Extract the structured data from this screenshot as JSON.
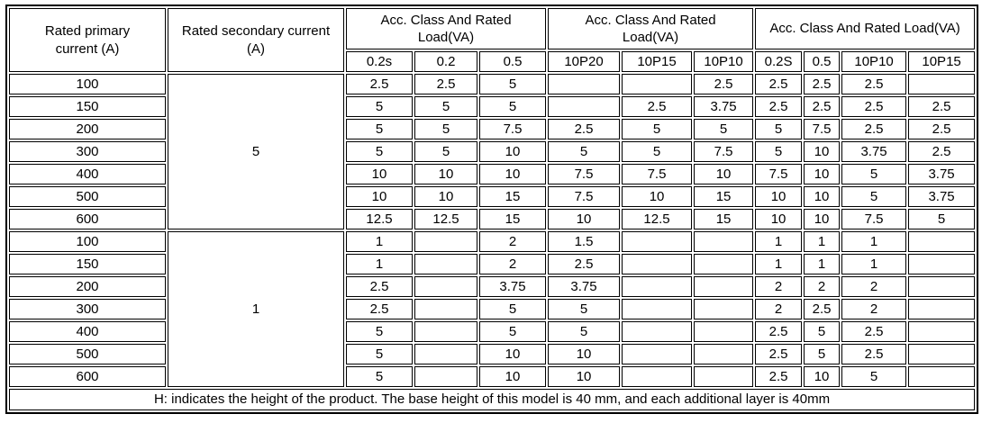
{
  "colors": {
    "border": "#000000",
    "text": "#000000",
    "background": "#ffffff"
  },
  "table": {
    "header": {
      "primary_label": "Rated primary current (A)",
      "secondary_label": "Rated secondary current (A)",
      "groups": [
        {
          "label": "Acc. Class And Rated Load(VA)",
          "columns": [
            "0.2s",
            "0.2",
            "0.5"
          ]
        },
        {
          "label": "Acc. Class And Rated Load(VA)",
          "columns": [
            "10P20",
            "10P15",
            "10P10"
          ]
        },
        {
          "label": "Acc. Class And Rated Load(VA)",
          "columns": [
            "0.2S",
            "0.5",
            "10P10",
            "10P15"
          ]
        }
      ]
    },
    "blocks": [
      {
        "secondary_current": "5",
        "rows": [
          {
            "primary_current": "100",
            "values": [
              "2.5",
              "2.5",
              "5",
              "",
              "",
              "2.5",
              "2.5",
              "2.5",
              "2.5",
              ""
            ]
          },
          {
            "primary_current": "150",
            "values": [
              "5",
              "5",
              "5",
              "",
              "2.5",
              "3.75",
              "2.5",
              "2.5",
              "2.5",
              "2.5"
            ]
          },
          {
            "primary_current": "200",
            "values": [
              "5",
              "5",
              "7.5",
              "2.5",
              "5",
              "5",
              "5",
              "7.5",
              "2.5",
              "2.5"
            ]
          },
          {
            "primary_current": "300",
            "values": [
              "5",
              "5",
              "10",
              "5",
              "5",
              "7.5",
              "5",
              "10",
              "3.75",
              "2.5"
            ]
          },
          {
            "primary_current": "400",
            "values": [
              "10",
              "10",
              "10",
              "7.5",
              "7.5",
              "10",
              "7.5",
              "10",
              "5",
              "3.75"
            ]
          },
          {
            "primary_current": "500",
            "values": [
              "10",
              "10",
              "15",
              "7.5",
              "10",
              "15",
              "10",
              "10",
              "5",
              "3.75"
            ]
          },
          {
            "primary_current": "600",
            "values": [
              "12.5",
              "12.5",
              "15",
              "10",
              "12.5",
              "15",
              "10",
              "10",
              "7.5",
              "5"
            ]
          }
        ]
      },
      {
        "secondary_current": "1",
        "rows": [
          {
            "primary_current": "100",
            "values": [
              "1",
              "",
              "2",
              "1.5",
              "",
              "",
              "1",
              "1",
              "1",
              ""
            ]
          },
          {
            "primary_current": "150",
            "values": [
              "1",
              "",
              "2",
              "2.5",
              "",
              "",
              "1",
              "1",
              "1",
              ""
            ]
          },
          {
            "primary_current": "200",
            "values": [
              "2.5",
              "",
              "3.75",
              "3.75",
              "",
              "",
              "2",
              "2",
              "2",
              ""
            ]
          },
          {
            "primary_current": "300",
            "values": [
              "2.5",
              "",
              "5",
              "5",
              "",
              "",
              "2",
              "2.5",
              "2",
              ""
            ]
          },
          {
            "primary_current": "400",
            "values": [
              "5",
              "",
              "5",
              "5",
              "",
              "",
              "2.5",
              "5",
              "2.5",
              ""
            ]
          },
          {
            "primary_current": "500",
            "values": [
              "5",
              "",
              "10",
              "10",
              "",
              "",
              "2.5",
              "5",
              "2.5",
              ""
            ]
          },
          {
            "primary_current": "600",
            "values": [
              "5",
              "",
              "10",
              "10",
              "",
              "",
              "2.5",
              "10",
              "5",
              ""
            ]
          }
        ]
      }
    ],
    "footnote": "H: indicates the height of the product. The base height of this model is 40 mm, and each additional layer is 40mm"
  }
}
